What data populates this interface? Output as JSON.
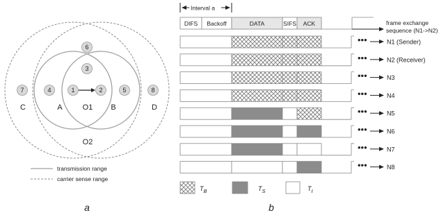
{
  "panel_a": {
    "caption": "a",
    "areas": {
      "A": "A",
      "B": "B",
      "C": "C",
      "D": "D",
      "O1": "O1",
      "O2": "O2"
    },
    "nodes": [
      "1",
      "2",
      "3",
      "4",
      "5",
      "6",
      "7",
      "8"
    ],
    "legend": {
      "transmission": "transmission range",
      "carrier": "carrier sense range"
    }
  },
  "panel_b": {
    "caption": "b",
    "interval_label": "Interval a",
    "header": [
      "DIFS",
      "Backoff",
      "DATA",
      "SIFS",
      "ACK"
    ],
    "sequence_label_1": "frame exchange",
    "sequence_label_2": "sequence (N1->N2)",
    "rows": [
      {
        "label": "N1 (Sender)",
        "data": "TB",
        "gap": "TB",
        "ack": "TB"
      },
      {
        "label": "N2 (Receiver)",
        "data": "TB",
        "gap": "TB",
        "ack": "TB"
      },
      {
        "label": "N3",
        "data": "TB",
        "gap": "TB",
        "ack": "TB"
      },
      {
        "label": "N4",
        "data": "TB",
        "gap": "TB",
        "ack": "TB"
      },
      {
        "label": "N5",
        "data": "TS",
        "gap": "TI",
        "ack": "TB"
      },
      {
        "label": "N6",
        "data": "TS",
        "gap": "TI",
        "ack": "TS"
      },
      {
        "label": "N7",
        "data": "TS",
        "gap": "TI",
        "ack": "TI"
      },
      {
        "label": "N8",
        "data": "TI",
        "gap": "TI",
        "ack": "TS"
      }
    ],
    "ellipsis": "•••",
    "legend": [
      {
        "key": "TB",
        "main": "T",
        "sub": "B"
      },
      {
        "key": "TS",
        "main": "T",
        "sub": "S"
      },
      {
        "key": "TI",
        "main": "T",
        "sub": "I"
      }
    ]
  },
  "colors": {
    "busy_hatch": "#a6a6a6",
    "sensed": "#8c8c8c",
    "header_fill": "#e6e6e6",
    "node_fill": "#d9d9d9",
    "circle_solid": "#a0a0a0",
    "circle_dashed": "#8a8a8a"
  }
}
